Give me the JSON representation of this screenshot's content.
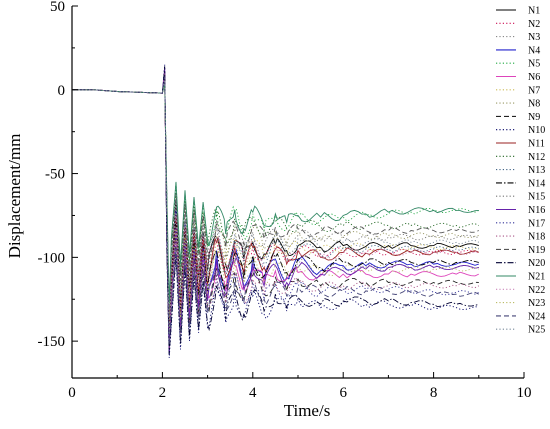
{
  "chart_data": {
    "type": "line",
    "title": "",
    "xlabel": "Time/s",
    "ylabel": "Displacement/mm",
    "xlim": [
      0,
      10
    ],
    "ylim": [
      -172,
      50
    ],
    "xticks": [
      0,
      2,
      4,
      6,
      8,
      10
    ],
    "yticks": [
      50,
      0,
      -50,
      -100,
      -150
    ],
    "xtick_labels": [
      "0",
      "2",
      "4",
      "6",
      "8",
      "10"
    ],
    "ytick_labels": [
      "50",
      "0",
      "-50",
      "-100",
      "-150"
    ],
    "grid": false,
    "legend_position": "right",
    "x": [
      0,
      0.5,
      1.0,
      1.5,
      2.0,
      2.05,
      2.1,
      2.15,
      2.2,
      2.3,
      2.4,
      2.5,
      2.6,
      2.7,
      2.8,
      2.9,
      3.0,
      3.2,
      3.4,
      3.6,
      3.8,
      4.0,
      4.25,
      4.5,
      4.75,
      5.0,
      5.5,
      6.0,
      6.5,
      7.0,
      7.5,
      8.0,
      8.5,
      9.0
    ],
    "series": [
      {
        "name": "N1",
        "color": "#000000",
        "dash": "solid",
        "values": [
          0,
          0,
          -1,
          -1.5,
          -2,
          8,
          -80,
          -150,
          -110,
          -65,
          -128,
          -78,
          -118,
          -82,
          -112,
          -85,
          -108,
          -88,
          -104,
          -90,
          -101,
          -91,
          -98,
          -92,
          -96,
          -93,
          -94,
          -93,
          -93.5,
          -93,
          -93,
          -93,
          -93,
          -93
        ]
      },
      {
        "name": "N2",
        "color": "#cc1155",
        "dash": "dot",
        "values": [
          0,
          0,
          -1,
          -1.5,
          -2,
          12,
          -90,
          -140,
          -100,
          -70,
          -120,
          -80,
          -115,
          -85,
          -110,
          -88,
          -106,
          -90,
          -104,
          -92,
          -102,
          -94,
          -100,
          -95,
          -99,
          -96,
          -98,
          -97,
          -97.5,
          -97,
          -97,
          -97,
          -97,
          -97
        ]
      },
      {
        "name": "N3",
        "color": "#888888",
        "dash": "dot",
        "values": [
          0,
          0,
          -1,
          -1.5,
          -2,
          5,
          -75,
          -155,
          -120,
          -80,
          -140,
          -90,
          -130,
          -95,
          -125,
          -98,
          -121,
          -100,
          -118,
          -101,
          -115,
          -102,
          -113,
          -103,
          -111,
          -104,
          -108,
          -106,
          -106,
          -106,
          -106,
          -106,
          -106,
          -106
        ]
      },
      {
        "name": "N4",
        "color": "#2222cc",
        "dash": "solid",
        "values": [
          0,
          0,
          -1,
          -1.5,
          -2,
          10,
          -85,
          -158,
          -118,
          -72,
          -142,
          -80,
          -135,
          -88,
          -128,
          -92,
          -124,
          -96,
          -120,
          -98,
          -117,
          -100,
          -114,
          -101,
          -112,
          -102,
          -108,
          -105,
          -105,
          -104,
          -104,
          -104,
          -104,
          -104
        ]
      },
      {
        "name": "N5",
        "color": "#22aa44",
        "dash": "dot",
        "values": [
          0,
          0,
          -1,
          -1.5,
          -2,
          6,
          -70,
          -135,
          -95,
          -55,
          -110,
          -62,
          -104,
          -66,
          -98,
          -69,
          -94,
          -71,
          -90,
          -73,
          -87,
          -74,
          -84,
          -75,
          -82,
          -75.5,
          -78,
          -76,
          -75,
          -74,
          -73,
          -72,
          -72,
          -72
        ]
      },
      {
        "name": "N6",
        "color": "#dd44bb",
        "dash": "solid",
        "values": [
          0,
          0,
          -1,
          -1.5,
          -2,
          9,
          -88,
          -150,
          -120,
          -85,
          -140,
          -92,
          -132,
          -97,
          -127,
          -100,
          -123,
          -103,
          -120,
          -105,
          -117,
          -107,
          -115,
          -108,
          -113,
          -109,
          -111,
          -110,
          -110,
          -110,
          -110,
          -110,
          -110,
          -110
        ]
      },
      {
        "name": "N7",
        "color": "#ccbb55",
        "dash": "dot",
        "values": [
          0,
          0,
          -1,
          -1.5,
          -2,
          4,
          -72,
          -142,
          -105,
          -68,
          -125,
          -75,
          -120,
          -80,
          -114,
          -84,
          -110,
          -87,
          -106,
          -89,
          -103,
          -90,
          -101,
          -91,
          -99,
          -92,
          -96,
          -94,
          -94,
          -94,
          -94,
          -94,
          -94,
          -94
        ]
      },
      {
        "name": "N8",
        "color": "#999966",
        "dash": "dot",
        "values": [
          0,
          0,
          -1,
          -1.5,
          -2,
          3,
          -68,
          -138,
          -100,
          -63,
          -120,
          -70,
          -114,
          -74,
          -108,
          -77,
          -104,
          -80,
          -100,
          -82,
          -97,
          -83,
          -95,
          -84,
          -93,
          -85,
          -90,
          -87,
          -87,
          -87,
          -87,
          -87,
          -87,
          -87
        ]
      },
      {
        "name": "N9",
        "color": "#222222",
        "dash": "dash",
        "values": [
          0,
          0,
          -1,
          -1.5,
          -2,
          11,
          -95,
          -157,
          -125,
          -88,
          -145,
          -96,
          -139,
          -101,
          -134,
          -104,
          -130,
          -107,
          -127,
          -109,
          -124,
          -111,
          -122,
          -112,
          -120,
          -113,
          -117,
          -115,
          -115,
          -115,
          -115,
          -115,
          -115,
          -115
        ]
      },
      {
        "name": "N10",
        "color": "#000066",
        "dash": "dot",
        "values": [
          0,
          0,
          -1,
          -1.5,
          -2,
          15,
          -98,
          -160,
          -140,
          -100,
          -155,
          -108,
          -150,
          -113,
          -145,
          -116,
          -142,
          -119,
          -139,
          -121,
          -136,
          -123,
          -134,
          -124,
          -132,
          -125,
          -130,
          -127,
          -128,
          -128,
          -129,
          -130,
          -130,
          -130
        ]
      },
      {
        "name": "N11",
        "color": "#992222",
        "dash": "solid",
        "values": [
          0,
          0,
          -1,
          -1.5,
          -2,
          7,
          -82,
          -148,
          -112,
          -75,
          -132,
          -82,
          -126,
          -86,
          -120,
          -89,
          -116,
          -91,
          -112,
          -93,
          -109,
          -94,
          -106,
          -95,
          -104,
          -96,
          -100,
          -97,
          -97.5,
          -97,
          -97,
          -97,
          -97,
          -97
        ]
      },
      {
        "name": "N12",
        "color": "#226622",
        "dash": "dot",
        "values": [
          0,
          0,
          -1,
          -1.5,
          -2,
          4,
          -66,
          -132,
          -92,
          -60,
          -108,
          -66,
          -102,
          -70,
          -97,
          -73,
          -93,
          -75,
          -89,
          -77,
          -86,
          -78,
          -84,
          -79,
          -83,
          -80,
          -82,
          -81,
          -81,
          -81,
          -81,
          -81,
          -81,
          -81
        ]
      },
      {
        "name": "N13",
        "color": "#446688",
        "dash": "dot",
        "values": [
          0,
          0,
          -1,
          -1.5,
          -2,
          6,
          -74,
          -145,
          -108,
          -70,
          -128,
          -78,
          -122,
          -82,
          -116,
          -85,
          -112,
          -88,
          -108,
          -90,
          -105,
          -91,
          -103,
          -92,
          -101,
          -93,
          -98,
          -95,
          -95,
          -95,
          -95,
          -95,
          -95,
          -95
        ]
      },
      {
        "name": "N14",
        "color": "#000000",
        "dash": "dashdot",
        "values": [
          0,
          0,
          -1,
          -1.5,
          -2,
          9,
          -86,
          -152,
          -116,
          -78,
          -136,
          -86,
          -130,
          -90,
          -124,
          -93,
          -120,
          -96,
          -116,
          -98,
          -113,
          -99,
          -111,
          -100,
          -109,
          -101,
          -106,
          -103,
          -103,
          -103,
          -103,
          -103,
          -103,
          -103
        ]
      },
      {
        "name": "N15",
        "color": "#777777",
        "dash": "dot",
        "values": [
          0,
          0,
          -1,
          -1.5,
          -2,
          5,
          -72,
          -140,
          -100,
          -65,
          -118,
          -72,
          -112,
          -76,
          -106,
          -79,
          -102,
          -82,
          -98,
          -84,
          -95,
          -85,
          -93,
          -86,
          -91,
          -87,
          -88,
          -88,
          -88,
          -88,
          -88,
          -88,
          -88,
          -88
        ]
      },
      {
        "name": "N16",
        "color": "#6622aa",
        "dash": "solid",
        "values": [
          0,
          0,
          -1,
          -1.5,
          -2,
          13,
          -92,
          -156,
          -122,
          -82,
          -142,
          -90,
          -136,
          -95,
          -130,
          -98,
          -126,
          -101,
          -122,
          -103,
          -119,
          -104,
          -117,
          -105,
          -115,
          -106,
          -110,
          -108,
          -107,
          -106,
          -106,
          -106,
          -106,
          -106
        ]
      },
      {
        "name": "N17",
        "color": "#333399",
        "dash": "dot",
        "values": [
          0,
          0,
          -1,
          -1.5,
          -2,
          8,
          -84,
          -150,
          -130,
          -92,
          -148,
          -100,
          -142,
          -105,
          -137,
          -108,
          -133,
          -111,
          -130,
          -113,
          -127,
          -115,
          -125,
          -116,
          -123,
          -117,
          -121,
          -119,
          -119,
          -119,
          -120,
          -121,
          -121,
          -121
        ]
      },
      {
        "name": "N18",
        "color": "#aa5588",
        "dash": "dot",
        "values": [
          0,
          0,
          -1,
          -1.5,
          -2,
          10,
          -90,
          -154,
          -128,
          -90,
          -146,
          -98,
          -140,
          -103,
          -134,
          -106,
          -130,
          -109,
          -127,
          -111,
          -124,
          -113,
          -122,
          -114,
          -120,
          -115,
          -118,
          -117,
          -117,
          -117,
          -117,
          -117,
          -117,
          -117
        ]
      },
      {
        "name": "N19",
        "color": "#555555",
        "dash": "dash",
        "values": [
          0,
          0,
          -1,
          -1.5,
          -2,
          4,
          -70,
          -136,
          -96,
          -62,
          -114,
          -68,
          -108,
          -72,
          -102,
          -75,
          -98,
          -78,
          -94,
          -80,
          -91,
          -81,
          -89,
          -82,
          -87,
          -83,
          -85,
          -84,
          -84,
          -84,
          -84,
          -84,
          -84,
          -84
        ]
      },
      {
        "name": "N20",
        "color": "#000033",
        "dash": "dashdot",
        "values": [
          0,
          0,
          -1,
          -1.5,
          -2,
          14,
          -96,
          -158,
          -138,
          -98,
          -152,
          -106,
          -148,
          -111,
          -143,
          -114,
          -140,
          -117,
          -137,
          -119,
          -134,
          -121,
          -132,
          -122,
          -130,
          -124,
          -128,
          -126,
          -126,
          -126,
          -127,
          -128,
          -128,
          -128
        ]
      },
      {
        "name": "N21",
        "color": "#338866",
        "dash": "solid",
        "values": [
          0,
          0,
          -1,
          -1.5,
          -2,
          3,
          -64,
          -128,
          -88,
          -55,
          -104,
          -60,
          -98,
          -64,
          -94,
          -67,
          -90,
          -70,
          -86,
          -72,
          -83,
          -73,
          -81,
          -74,
          -79,
          -75,
          -76,
          -75,
          -74,
          -73,
          -72,
          -72,
          -72,
          -72
        ]
      },
      {
        "name": "N22",
        "color": "#cc88bb",
        "dash": "dot",
        "values": [
          0,
          0,
          -1,
          -1.5,
          -2,
          7,
          -80,
          -146,
          -110,
          -74,
          -130,
          -80,
          -124,
          -84,
          -118,
          -87,
          -114,
          -90,
          -110,
          -92,
          -107,
          -93,
          -105,
          -94,
          -103,
          -95,
          -100,
          -97,
          -97,
          -97,
          -97,
          -97,
          -97,
          -97
        ]
      },
      {
        "name": "N23",
        "color": "#bbbb66",
        "dash": "dot",
        "values": [
          0,
          0,
          -1,
          -1.5,
          -2,
          5,
          -76,
          -144,
          -118,
          -82,
          -136,
          -88,
          -130,
          -93,
          -125,
          -96,
          -121,
          -99,
          -118,
          -101,
          -115,
          -103,
          -113,
          -104,
          -111,
          -105,
          -109,
          -107,
          -107,
          -107,
          -107,
          -107,
          -107,
          -107
        ]
      },
      {
        "name": "N24",
        "color": "#444477",
        "dash": "dash",
        "values": [
          0,
          0,
          -1,
          -1.5,
          -2,
          8,
          -82,
          -152,
          -132,
          -94,
          -148,
          -101,
          -142,
          -106,
          -137,
          -109,
          -133,
          -112,
          -130,
          -114,
          -127,
          -116,
          -125,
          -117,
          -123,
          -118,
          -121,
          -120,
          -120,
          -120,
          -121,
          -122,
          -122,
          -122
        ]
      },
      {
        "name": "N25",
        "color": "#778899",
        "dash": "dot",
        "values": [
          0,
          0,
          -1,
          -1.5,
          -2,
          6,
          -78,
          -146,
          -104,
          -66,
          -124,
          -74,
          -118,
          -78,
          -112,
          -81,
          -108,
          -84,
          -104,
          -86,
          -101,
          -87,
          -99,
          -88,
          -97,
          -89,
          -94,
          -91,
          -91,
          -91,
          -91,
          -91,
          -91,
          -91
        ]
      }
    ]
  }
}
